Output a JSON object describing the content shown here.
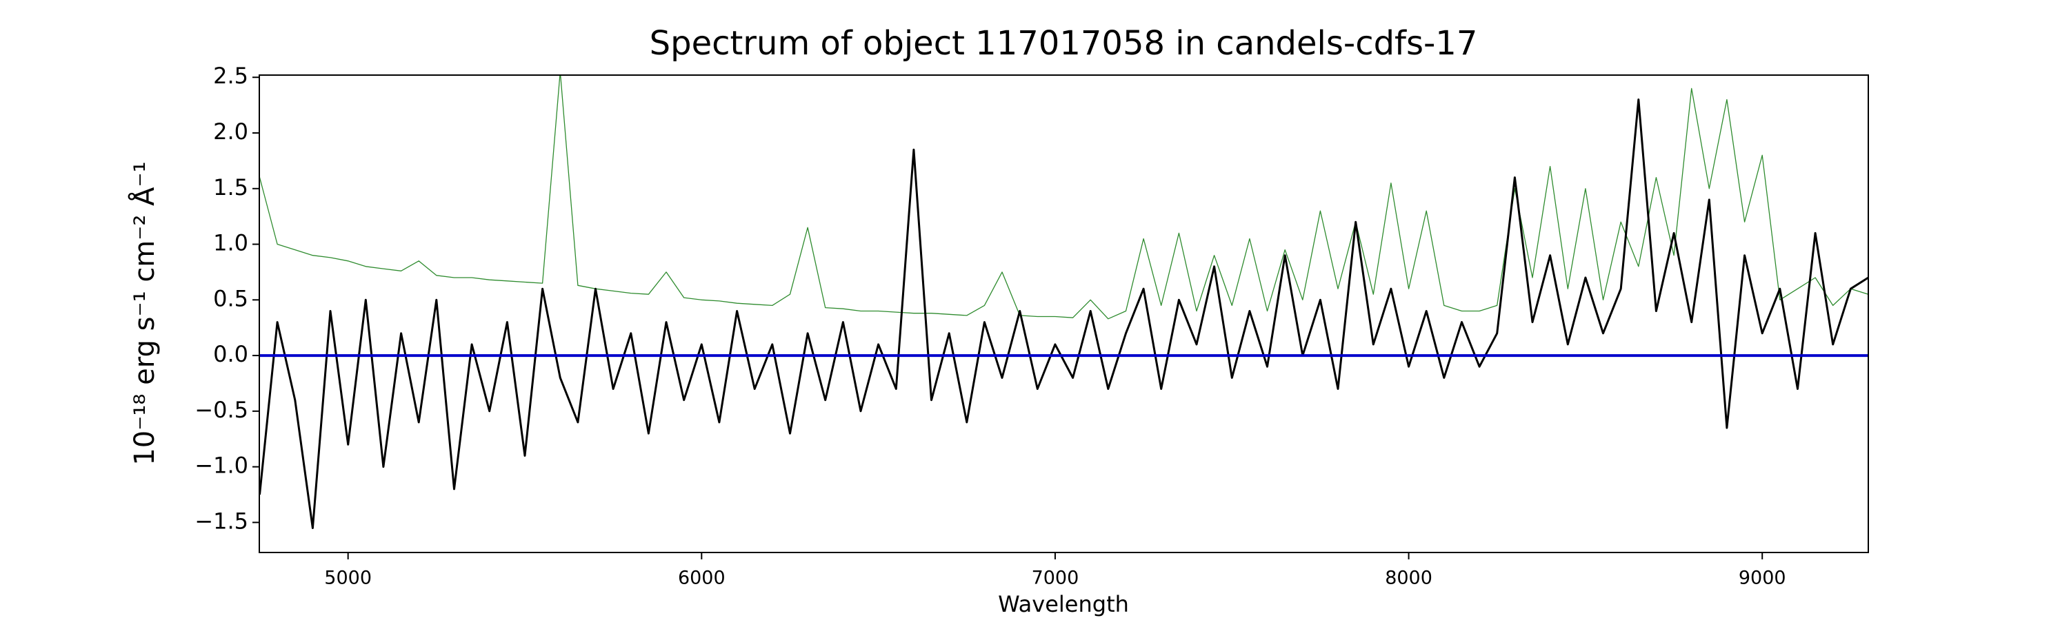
{
  "chart_data": {
    "type": "line",
    "title": "Spectrum of object 117017058 in candels-cdfs-17",
    "xlabel": "Wavelength",
    "ylabel": "10⁻¹⁸ erg s⁻¹ cm⁻² Å⁻¹",
    "xlim": [
      4749,
      9300
    ],
    "ylim": [
      -1.77,
      2.52
    ],
    "xticks": [
      5000,
      6000,
      7000,
      8000,
      9000
    ],
    "yticks": [
      {
        "value": 2.5,
        "label": "2.5"
      },
      {
        "value": 2,
        "label": "2.0"
      },
      {
        "value": 1.5,
        "label": "1.5"
      },
      {
        "value": 1,
        "label": "1.0"
      },
      {
        "value": 0.5,
        "label": "0.5"
      },
      {
        "value": 0,
        "label": "0.0"
      },
      {
        "value": -0.5,
        "label": "−0.5"
      },
      {
        "value": -1,
        "label": "−1.0"
      },
      {
        "value": -1.5,
        "label": "−1.5"
      }
    ],
    "x": [
      4750,
      4800,
      4850,
      4900,
      4950,
      5000,
      5050,
      5100,
      5150,
      5200,
      5250,
      5300,
      5350,
      5400,
      5450,
      5500,
      5550,
      5600,
      5650,
      5700,
      5750,
      5800,
      5850,
      5900,
      5950,
      6000,
      6050,
      6100,
      6150,
      6200,
      6250,
      6300,
      6350,
      6400,
      6450,
      6500,
      6550,
      6600,
      6650,
      6700,
      6750,
      6800,
      6850,
      6900,
      6950,
      7000,
      7050,
      7100,
      7150,
      7200,
      7250,
      7300,
      7350,
      7400,
      7450,
      7500,
      7550,
      7600,
      7650,
      7700,
      7750,
      7800,
      7850,
      7900,
      7950,
      8000,
      8050,
      8100,
      8150,
      8200,
      8250,
      8300,
      8350,
      8400,
      8450,
      8500,
      8550,
      8600,
      8650,
      8700,
      8750,
      8800,
      8850,
      8900,
      8950,
      9000,
      9050,
      9100,
      9150,
      9200,
      9250,
      9300
    ],
    "series": [
      {
        "color": "#2e8b2e",
        "width": 1.3,
        "values": [
          1.6,
          1.0,
          0.95,
          0.9,
          0.88,
          0.85,
          0.8,
          0.78,
          0.76,
          0.85,
          0.72,
          0.7,
          0.7,
          0.68,
          0.67,
          0.66,
          0.65,
          2.55,
          0.63,
          0.6,
          0.58,
          0.56,
          0.55,
          0.75,
          0.52,
          0.5,
          0.49,
          0.47,
          0.46,
          0.45,
          0.55,
          1.15,
          0.43,
          0.42,
          0.4,
          0.4,
          0.39,
          0.38,
          0.38,
          0.37,
          0.36,
          0.45,
          0.75,
          0.36,
          0.35,
          0.35,
          0.34,
          0.5,
          0.33,
          0.4,
          1.05,
          0.45,
          1.1,
          0.4,
          0.9,
          0.45,
          1.05,
          0.4,
          0.95,
          0.5,
          1.3,
          0.6,
          1.2,
          0.55,
          1.55,
          0.6,
          1.3,
          0.45,
          0.4,
          0.4,
          0.45,
          1.5,
          0.7,
          1.7,
          0.6,
          1.5,
          0.5,
          1.2,
          0.8,
          1.6,
          0.9,
          2.4,
          1.5,
          2.3,
          1.2,
          1.8,
          0.5,
          0.6,
          0.7,
          0.45,
          0.6,
          0.55
        ]
      },
      {
        "color": "#000000",
        "width": 3,
        "values": [
          -1.25,
          0.3,
          -0.4,
          -1.55,
          0.4,
          -0.8,
          0.5,
          -1.0,
          0.2,
          -0.6,
          0.5,
          -1.2,
          0.1,
          -0.5,
          0.3,
          -0.9,
          0.6,
          -0.2,
          -0.6,
          0.6,
          -0.3,
          0.2,
          -0.7,
          0.3,
          -0.4,
          0.1,
          -0.6,
          0.4,
          -0.3,
          0.1,
          -0.7,
          0.2,
          -0.4,
          0.3,
          -0.5,
          0.1,
          -0.3,
          1.85,
          -0.4,
          0.2,
          -0.6,
          0.3,
          -0.2,
          0.4,
          -0.3,
          0.1,
          -0.2,
          0.4,
          -0.3,
          0.2,
          0.6,
          -0.3,
          0.5,
          0.1,
          0.8,
          -0.2,
          0.4,
          -0.1,
          0.9,
          0.0,
          0.5,
          -0.3,
          1.2,
          0.1,
          0.6,
          -0.1,
          0.4,
          -0.2,
          0.3,
          -0.1,
          0.2,
          1.6,
          0.3,
          0.9,
          0.1,
          0.7,
          0.2,
          0.6,
          2.3,
          0.4,
          1.1,
          0.3,
          1.4,
          -0.65,
          0.9,
          0.2,
          0.6,
          -0.3,
          1.1,
          0.1,
          0.6,
          0.7
        ]
      },
      {
        "color": "#0000cc",
        "width": 4,
        "x": [
          4750,
          9300
        ],
        "values": [
          0,
          0
        ]
      }
    ]
  }
}
